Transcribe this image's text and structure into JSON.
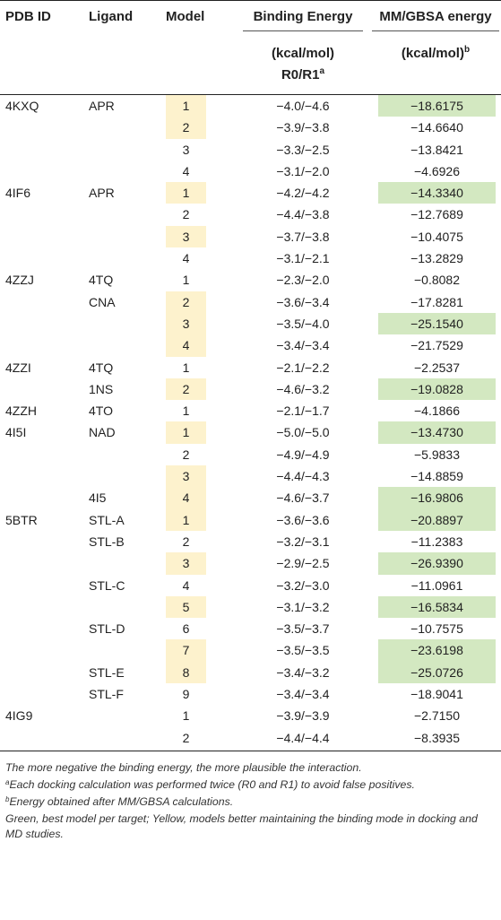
{
  "headers": {
    "pdb_id": "PDB ID",
    "ligand": "Ligand",
    "model": "Model",
    "binding_energy": "Binding Energy",
    "binding_energy_unit": "(kcal/mol)",
    "binding_energy_sub": "R0/R1",
    "binding_energy_sup": "a",
    "mmgbsa": "MM/GBSA energy",
    "mmgbsa_unit": "(kcal/mol)",
    "mmgbsa_sup": "b"
  },
  "rows": [
    {
      "pdb": "4KXQ",
      "ligand": "APR",
      "model": "1",
      "model_hl": true,
      "be": "−4.0/−4.6",
      "mm": "−18.6175",
      "mm_hl": true
    },
    {
      "pdb": "",
      "ligand": "",
      "model": "2",
      "model_hl": true,
      "be": "−3.9/−3.8",
      "mm": "−14.6640",
      "mm_hl": false
    },
    {
      "pdb": "",
      "ligand": "",
      "model": "3",
      "model_hl": false,
      "be": "−3.3/−2.5",
      "mm": "−13.8421",
      "mm_hl": false
    },
    {
      "pdb": "",
      "ligand": "",
      "model": "4",
      "model_hl": false,
      "be": "−3.1/−2.0",
      "mm": "−4.6926",
      "mm_hl": false
    },
    {
      "pdb": "4IF6",
      "ligand": "APR",
      "model": "1",
      "model_hl": true,
      "be": "−4.2/−4.2",
      "mm": "−14.3340",
      "mm_hl": true
    },
    {
      "pdb": "",
      "ligand": "",
      "model": "2",
      "model_hl": false,
      "be": "−4.4/−3.8",
      "mm": "−12.7689",
      "mm_hl": false
    },
    {
      "pdb": "",
      "ligand": "",
      "model": "3",
      "model_hl": true,
      "be": "−3.7/−3.8",
      "mm": "−10.4075",
      "mm_hl": false
    },
    {
      "pdb": "",
      "ligand": "",
      "model": "4",
      "model_hl": false,
      "be": "−3.1/−2.1",
      "mm": "−13.2829",
      "mm_hl": false
    },
    {
      "pdb": "4ZZJ",
      "ligand": "4TQ",
      "model": "1",
      "model_hl": false,
      "be": "−2.3/−2.0",
      "mm": "−0.8082",
      "mm_hl": false
    },
    {
      "pdb": "",
      "ligand": "CNA",
      "model": "2",
      "model_hl": true,
      "be": "−3.6/−3.4",
      "mm": "−17.8281",
      "mm_hl": false
    },
    {
      "pdb": "",
      "ligand": "",
      "model": "3",
      "model_hl": true,
      "be": "−3.5/−4.0",
      "mm": "−25.1540",
      "mm_hl": true
    },
    {
      "pdb": "",
      "ligand": "",
      "model": "4",
      "model_hl": true,
      "be": "−3.4/−3.4",
      "mm": "−21.7529",
      "mm_hl": false
    },
    {
      "pdb": "4ZZI",
      "ligand": "4TQ",
      "model": "1",
      "model_hl": false,
      "be": "−2.1/−2.2",
      "mm": "−2.2537",
      "mm_hl": false
    },
    {
      "pdb": "",
      "ligand": "1NS",
      "model": "2",
      "model_hl": true,
      "be": "−4.6/−3.2",
      "mm": "−19.0828",
      "mm_hl": true
    },
    {
      "pdb": "4ZZH",
      "ligand": "4TO",
      "model": "1",
      "model_hl": false,
      "be": "−2.1/−1.7",
      "mm": "−4.1866",
      "mm_hl": false
    },
    {
      "pdb": "4I5I",
      "ligand": "NAD",
      "model": "1",
      "model_hl": true,
      "be": "−5.0/−5.0",
      "mm": "−13.4730",
      "mm_hl": true
    },
    {
      "pdb": "",
      "ligand": "",
      "model": "2",
      "model_hl": false,
      "be": "−4.9/−4.9",
      "mm": "−5.9833",
      "mm_hl": false
    },
    {
      "pdb": "",
      "ligand": "",
      "model": "3",
      "model_hl": true,
      "be": "−4.4/−4.3",
      "mm": "−14.8859",
      "mm_hl": false
    },
    {
      "pdb": "",
      "ligand": "4I5",
      "model": "4",
      "model_hl": true,
      "be": "−4.6/−3.7",
      "mm": "−16.9806",
      "mm_hl": true
    },
    {
      "pdb": "5BTR",
      "ligand": "STL-A",
      "model": "1",
      "model_hl": true,
      "be": "−3.6/−3.6",
      "mm": "−20.8897",
      "mm_hl": true
    },
    {
      "pdb": "",
      "ligand": "STL-B",
      "model": "2",
      "model_hl": false,
      "be": "−3.2/−3.1",
      "mm": "−11.2383",
      "mm_hl": false
    },
    {
      "pdb": "",
      "ligand": "",
      "model": "3",
      "model_hl": true,
      "be": "−2.9/−2.5",
      "mm": "−26.9390",
      "mm_hl": true
    },
    {
      "pdb": "",
      "ligand": "STL-C",
      "model": "4",
      "model_hl": false,
      "be": "−3.2/−3.0",
      "mm": "−11.0961",
      "mm_hl": false
    },
    {
      "pdb": "",
      "ligand": "",
      "model": "5",
      "model_hl": true,
      "be": "−3.1/−3.2",
      "mm": "−16.5834",
      "mm_hl": true
    },
    {
      "pdb": "",
      "ligand": "STL-D",
      "model": "6",
      "model_hl": false,
      "be": "−3.5/−3.7",
      "mm": "−10.7575",
      "mm_hl": false
    },
    {
      "pdb": "",
      "ligand": "",
      "model": "7",
      "model_hl": true,
      "be": "−3.5/−3.5",
      "mm": "−23.6198",
      "mm_hl": true
    },
    {
      "pdb": "",
      "ligand": "STL-E",
      "model": "8",
      "model_hl": true,
      "be": "−3.4/−3.2",
      "mm": "−25.0726",
      "mm_hl": true
    },
    {
      "pdb": "",
      "ligand": "STL-F",
      "model": "9",
      "model_hl": false,
      "be": "−3.4/−3.4",
      "mm": "−18.9041",
      "mm_hl": false
    },
    {
      "pdb": "4IG9",
      "ligand": "",
      "model": "1",
      "model_hl": false,
      "be": "−3.9/−3.9",
      "mm": "−2.7150",
      "mm_hl": false
    },
    {
      "pdb": "",
      "ligand": "",
      "model": "2",
      "model_hl": false,
      "be": "−4.4/−4.4",
      "mm": "−8.3935",
      "mm_hl": false
    }
  ],
  "notes": {
    "note1": "The more negative the binding energy, the more plausible the interaction.",
    "note2_sup": "a",
    "note2": "Each docking calculation was performed twice (R0 and R1) to avoid false positives.",
    "note3_sup": "b",
    "note3": "Energy obtained after MM/GBSA calculations.",
    "note4": "Green, best model per target; Yellow, models better maintaining the binding mode in docking and MD studies."
  },
  "colors": {
    "yellow_highlight": "#fdf2cd",
    "green_highlight": "#d3e8c1"
  }
}
